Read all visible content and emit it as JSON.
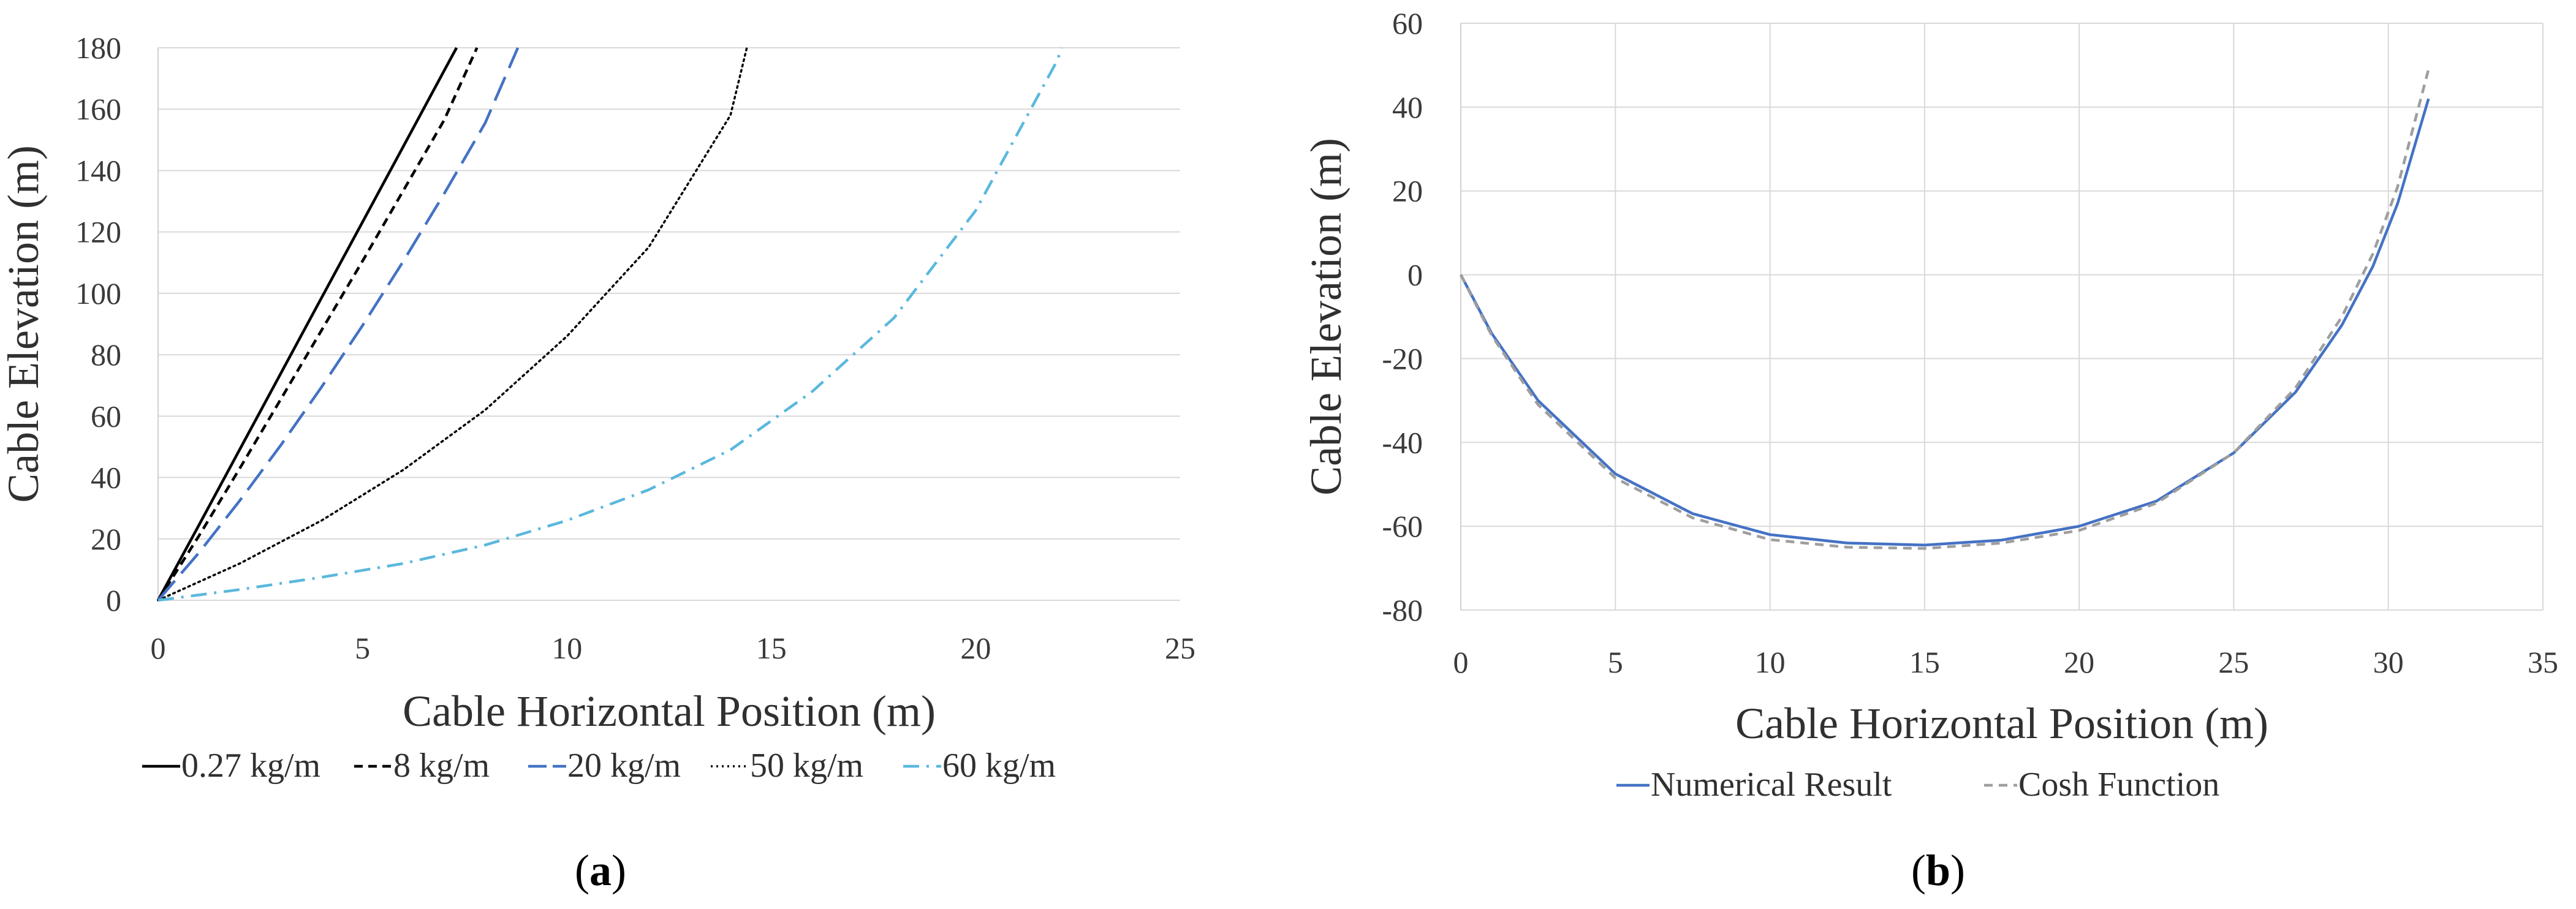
{
  "chart_data": [
    {
      "type": "line",
      "panel": "a",
      "caption_letter": "a",
      "xlabel": "Cable Horizontal Position (m)",
      "ylabel": "Cable Elevation (m)",
      "xlim": [
        0,
        25
      ],
      "ylim": [
        0,
        180
      ],
      "xticks": [
        0,
        5,
        10,
        15,
        20,
        25
      ],
      "yticks": [
        0,
        20,
        40,
        60,
        80,
        100,
        120,
        140,
        160,
        180
      ],
      "grid": "horizontal",
      "legend_position": "bottom",
      "series": [
        {
          "name": "0.27 kg/m",
          "color": "#000000",
          "dash": "solid",
          "x": [
            0,
            1,
            2,
            3,
            4,
            5,
            6,
            7,
            7.3
          ],
          "y": [
            0,
            24.5,
            49.2,
            73.9,
            98.6,
            123.2,
            147.9,
            172.6,
            180
          ]
        },
        {
          "name": "8 kg/m",
          "color": "#000000",
          "dash": "short-dash",
          "x": [
            0,
            1,
            2,
            3,
            4,
            5,
            6,
            7,
            7.8
          ],
          "y": [
            0,
            21,
            43,
            65.5,
            88,
            110.5,
            133.5,
            156.5,
            180
          ]
        },
        {
          "name": "20 kg/m",
          "color": "#4472C4",
          "dash": "long-dash",
          "x": [
            0,
            1,
            2,
            3,
            4,
            5,
            6,
            7,
            8,
            8.8
          ],
          "y": [
            0,
            15.5,
            32.5,
            50.5,
            69.5,
            89.5,
            110.5,
            132.5,
            155.5,
            180
          ]
        },
        {
          "name": "50 kg/m",
          "color": "#000000",
          "dash": "dotted",
          "x": [
            0,
            2,
            4,
            6,
            8,
            10,
            12,
            14,
            14.4
          ],
          "y": [
            0,
            12,
            26,
            42.5,
            62,
            86,
            115,
            158,
            180
          ]
        },
        {
          "name": "60 kg/m",
          "color": "#5BB8DC",
          "dash": "dash-dot",
          "x": [
            0,
            2,
            4,
            6,
            8,
            10,
            12,
            14,
            16,
            18,
            20,
            22,
            22.1
          ],
          "y": [
            0,
            3.5,
            7.5,
            12,
            18,
            26,
            36,
            49,
            68,
            92,
            127,
            176,
            180
          ]
        }
      ]
    },
    {
      "type": "line",
      "panel": "b",
      "caption_letter": "b",
      "xlabel": "Cable Horizontal Position (m)",
      "ylabel": "Cable Elevation (m)",
      "xlim": [
        0,
        35
      ],
      "ylim": [
        -80,
        60
      ],
      "xticks": [
        0,
        5,
        10,
        15,
        20,
        25,
        30,
        35
      ],
      "yticks": [
        -80,
        -60,
        -40,
        -20,
        0,
        20,
        40,
        60
      ],
      "grid": "both",
      "legend_position": "bottom",
      "series": [
        {
          "name": "Numerical Result",
          "color": "#4472C4",
          "dash": "solid",
          "x": [
            0,
            1,
            2.5,
            5,
            7.5,
            10,
            12.5,
            15,
            17.5,
            20,
            22.5,
            25,
            27,
            28.5,
            29.5,
            30.3,
            31.3
          ],
          "y": [
            0,
            -14,
            -30,
            -47.5,
            -57,
            -62,
            -64,
            -64.5,
            -63.3,
            -60,
            -54,
            -42.5,
            -28,
            -12,
            2,
            17,
            42
          ]
        },
        {
          "name": "Cosh Function",
          "color": "#9E9E9E",
          "dash": "dashed",
          "x": [
            0,
            1,
            2.5,
            5,
            7.5,
            10,
            12.5,
            15,
            17.5,
            20,
            22.5,
            25,
            27,
            28.5,
            29.5,
            30.3,
            31.3
          ],
          "y": [
            0,
            -14.5,
            -31,
            -48.5,
            -58,
            -63.2,
            -65,
            -65.3,
            -64,
            -61,
            -54.5,
            -42.5,
            -27,
            -10,
            5,
            21,
            49
          ]
        }
      ]
    }
  ]
}
